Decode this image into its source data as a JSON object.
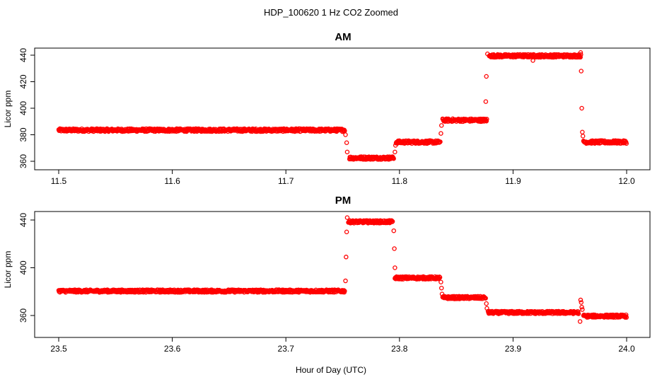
{
  "figure": {
    "title": "HDP_100620  1 Hz CO2 Zoomed",
    "xlabel": "Hour of Day (UTC)"
  },
  "chart_data": [
    {
      "type": "scatter",
      "title": "AM",
      "ylabel": "Licor ppm",
      "xlim": [
        11.5,
        12.0
      ],
      "ylim": [
        359,
        446
      ],
      "xticks": [
        "11.5",
        "11.6",
        "11.7",
        "11.8",
        "11.9",
        "12.0"
      ],
      "yticks": [
        "360",
        "380",
        "400",
        "420",
        "440"
      ],
      "point_color": "#ff0000",
      "marker": "open-circle",
      "segments": [
        {
          "x_start": 11.5,
          "x_end": 11.752,
          "y": 383.5
        },
        {
          "x_start": 11.756,
          "x_end": 11.795,
          "y": 362.5
        },
        {
          "x_start": 11.797,
          "x_end": 11.836,
          "y": 374.5
        },
        {
          "x_start": 11.838,
          "x_end": 11.877,
          "y": 391
        },
        {
          "x_start": 11.879,
          "x_end": 11.96,
          "y": 439.5
        },
        {
          "x_start": 11.962,
          "x_end": 12.0,
          "y": 374.5
        }
      ],
      "transition_points": [
        {
          "x": 11.7525,
          "y": 380
        },
        {
          "x": 11.7535,
          "y": 374
        },
        {
          "x": 11.754,
          "y": 367
        },
        {
          "x": 11.796,
          "y": 367
        },
        {
          "x": 11.7965,
          "y": 372
        },
        {
          "x": 11.8365,
          "y": 381
        },
        {
          "x": 11.837,
          "y": 387
        },
        {
          "x": 11.876,
          "y": 405
        },
        {
          "x": 11.8765,
          "y": 424
        },
        {
          "x": 11.8775,
          "y": 441
        },
        {
          "x": 11.9175,
          "y": 436
        },
        {
          "x": 11.9595,
          "y": 442
        },
        {
          "x": 11.96,
          "y": 428
        },
        {
          "x": 11.9605,
          "y": 400
        },
        {
          "x": 11.961,
          "y": 382
        },
        {
          "x": 11.9615,
          "y": 379
        }
      ]
    },
    {
      "type": "scatter",
      "title": "PM",
      "ylabel": "Licor ppm",
      "xlim": [
        23.5,
        24.0
      ],
      "ylim": [
        351,
        447
      ],
      "xticks": [
        "23.5",
        "23.6",
        "23.7",
        "23.8",
        "23.9",
        "24.0"
      ],
      "yticks": [
        "360",
        "400",
        "440"
      ],
      "point_color": "#ff0000",
      "marker": "open-circle",
      "segments": [
        {
          "x_start": 23.5,
          "x_end": 23.752,
          "y": 380.5
        },
        {
          "x_start": 23.755,
          "x_end": 23.794,
          "y": 438.5
        },
        {
          "x_start": 23.796,
          "x_end": 23.836,
          "y": 391.5
        },
        {
          "x_start": 23.838,
          "x_end": 23.876,
          "y": 375
        },
        {
          "x_start": 23.878,
          "x_end": 23.958,
          "y": 362.5
        },
        {
          "x_start": 23.962,
          "x_end": 24.0,
          "y": 359.5
        }
      ],
      "transition_points": [
        {
          "x": 23.7525,
          "y": 389
        },
        {
          "x": 23.753,
          "y": 409
        },
        {
          "x": 23.7535,
          "y": 430
        },
        {
          "x": 23.754,
          "y": 442
        },
        {
          "x": 23.795,
          "y": 431
        },
        {
          "x": 23.7955,
          "y": 416
        },
        {
          "x": 23.796,
          "y": 400
        },
        {
          "x": 23.8365,
          "y": 388
        },
        {
          "x": 23.837,
          "y": 383
        },
        {
          "x": 23.8375,
          "y": 378
        },
        {
          "x": 23.8765,
          "y": 370
        },
        {
          "x": 23.877,
          "y": 366
        },
        {
          "x": 23.959,
          "y": 355
        },
        {
          "x": 23.9595,
          "y": 373
        },
        {
          "x": 23.96,
          "y": 371
        },
        {
          "x": 23.9605,
          "y": 367
        },
        {
          "x": 23.961,
          "y": 365
        }
      ]
    }
  ]
}
